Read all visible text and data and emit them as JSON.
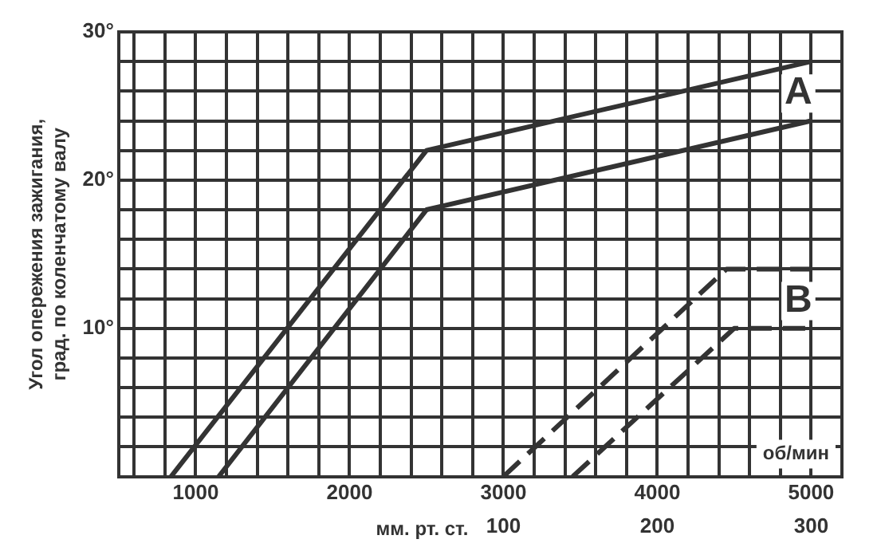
{
  "chart_data": {
    "type": "line",
    "ylabel": "Угол опережения зажигания,\nград. по коленчатому валу",
    "xlabel": "об/мин",
    "x2label": "мм. рт. ст.",
    "xlim": [
      500,
      5200
    ],
    "xticks": [
      {
        "value": 600,
        "label": null
      },
      {
        "value": 800,
        "label": null
      },
      1000,
      {
        "value": 1200,
        "label": null
      },
      {
        "value": 1400,
        "label": null
      },
      {
        "value": 1600,
        "label": null
      },
      {
        "value": 1800,
        "label": null
      },
      2000,
      {
        "value": 2200,
        "label": null
      },
      {
        "value": 2400,
        "label": null
      },
      {
        "value": 2600,
        "label": null
      },
      {
        "value": 2800,
        "label": null
      },
      3000,
      {
        "value": 3200,
        "label": null
      },
      {
        "value": 3400,
        "label": null
      },
      {
        "value": 3600,
        "label": null
      },
      {
        "value": 3800,
        "label": null
      },
      4000,
      {
        "value": 4200,
        "label": null
      },
      {
        "value": 4400,
        "label": null
      },
      {
        "value": 4600,
        "label": null
      },
      {
        "value": 4800,
        "label": null
      },
      5000
    ],
    "x2lim": [
      -150,
      320
    ],
    "x2ticks": [
      100,
      200,
      300
    ],
    "ylim": [
      0,
      30
    ],
    "yticks": [
      {
        "value": 0,
        "label": null
      },
      {
        "value": 2,
        "label": null
      },
      {
        "value": 4,
        "label": null
      },
      {
        "value": 6,
        "label": null
      },
      {
        "value": 8,
        "label": null
      },
      {
        "value": 10,
        "label": "10°"
      },
      {
        "value": 12,
        "label": null
      },
      {
        "value": 14,
        "label": null
      },
      {
        "value": 16,
        "label": null
      },
      {
        "value": 18,
        "label": null
      },
      {
        "value": 20,
        "label": "20°"
      },
      {
        "value": 22,
        "label": null
      },
      {
        "value": 24,
        "label": null
      },
      {
        "value": 26,
        "label": null
      },
      {
        "value": 28,
        "label": null
      },
      {
        "value": 30,
        "label": "30°"
      }
    ],
    "grid": true,
    "legend": false,
    "marker": "none",
    "series": [
      {
        "name": "A",
        "color": "#333333",
        "line_style": "solid",
        "x": [
          840,
          2500,
          5000
        ],
        "values": [
          0,
          22,
          28
        ]
      },
      {
        "color": "#333333",
        "line_style": "solid",
        "x": [
          1150,
          2500,
          5000
        ],
        "values": [
          0,
          18,
          24
        ]
      },
      {
        "name": "B",
        "color": "#333333",
        "line_style": "dashed",
        "x": [
          3000,
          4450,
          5000
        ],
        "values": [
          0,
          14,
          14
        ]
      },
      {
        "color": "#333333",
        "line_style": "dashed",
        "x": [
          3450,
          4500,
          5000
        ],
        "values": [
          0,
          10,
          10
        ]
      }
    ]
  }
}
